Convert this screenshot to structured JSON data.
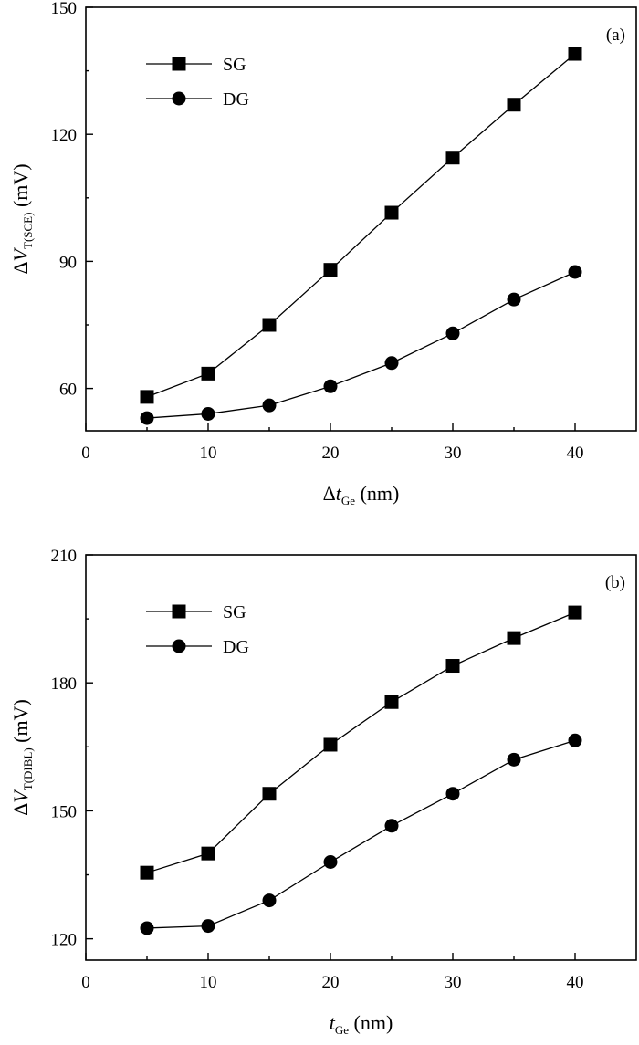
{
  "chart_data": [
    {
      "type": "line",
      "panel_label": "(a)",
      "x": [
        5,
        10,
        15,
        20,
        25,
        30,
        35,
        40
      ],
      "xlim": [
        0,
        45
      ],
      "xticks": [
        0,
        10,
        20,
        30,
        40
      ],
      "ylim": [
        50,
        150
      ],
      "yticks": [
        60,
        90,
        120,
        150
      ],
      "xlabel": {
        "prefix": "Δ",
        "symbol": "t",
        "sub": "Ge",
        "unit": " (nm)"
      },
      "ylabel": {
        "prefix": "Δ",
        "symbol": "V",
        "sub": "T(SCE)",
        "unit": " (mV)"
      },
      "grid": false,
      "legend_position": "top-left",
      "series": [
        {
          "name": "SG",
          "marker": "square",
          "values": [
            58,
            63.5,
            75,
            88,
            101.5,
            114.5,
            127,
            139
          ]
        },
        {
          "name": "DG",
          "marker": "circle",
          "values": [
            53,
            54,
            56,
            60.5,
            66,
            73,
            81,
            87.5
          ]
        }
      ]
    },
    {
      "type": "line",
      "panel_label": "(b)",
      "x": [
        5,
        10,
        15,
        20,
        25,
        30,
        35,
        40
      ],
      "xlim": [
        0,
        45
      ],
      "xticks": [
        0,
        10,
        20,
        30,
        40
      ],
      "ylim": [
        115,
        210
      ],
      "yticks": [
        120,
        150,
        180,
        210
      ],
      "xlabel": {
        "prefix": "",
        "symbol": "t",
        "sub": "Ge",
        "unit": " (nm)"
      },
      "ylabel": {
        "prefix": "Δ",
        "symbol": "V",
        "sub": "T(DIBL)",
        "unit": " (mV)"
      },
      "grid": false,
      "legend_position": "top-left",
      "series": [
        {
          "name": "SG",
          "marker": "square",
          "values": [
            135.5,
            140,
            154,
            165.5,
            175.5,
            184,
            190.5,
            196.5
          ]
        },
        {
          "name": "DG",
          "marker": "circle",
          "values": [
            122.5,
            123,
            129,
            138,
            146.5,
            154,
            162,
            166.5
          ]
        }
      ]
    }
  ]
}
